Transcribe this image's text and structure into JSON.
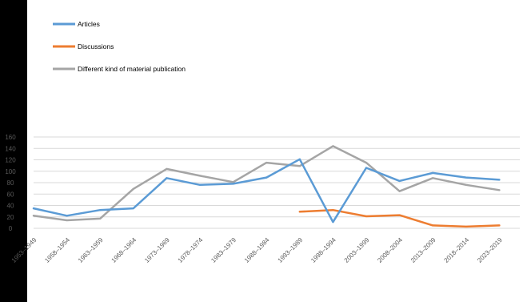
{
  "chart_data": {
    "type": "line",
    "categories": [
      "1953–1949",
      "1958–1954",
      "1963–1959",
      "1968–1964",
      "1973–1969",
      "1978–1974",
      "1983–1979",
      "1988–1984",
      "1993–1989",
      "1998–1994",
      "2003–1999",
      "2008–2004",
      "2013–2009",
      "2018–2014",
      "2023–2019"
    ],
    "series": [
      {
        "name": "Articles",
        "color": "#5b9bd5",
        "values": [
          35,
          22,
          32,
          35,
          88,
          76,
          78,
          89,
          121,
          11,
          106,
          83,
          97,
          89,
          85
        ]
      },
      {
        "name": "Discussions",
        "color": "#ed7d31",
        "values": [
          null,
          null,
          null,
          null,
          null,
          null,
          null,
          null,
          29,
          32,
          21,
          23,
          5,
          3,
          5
        ]
      },
      {
        "name": "Different kind of material publication",
        "color": "#a5a5a5",
        "values": [
          22,
          14,
          17,
          69,
          104,
          92,
          81,
          115,
          109,
          144,
          115,
          65,
          88,
          76,
          67
        ]
      }
    ],
    "ylim": [
      0,
      160
    ],
    "yticks": [
      0,
      20,
      40,
      60,
      80,
      100,
      120,
      140,
      160
    ],
    "grid": true,
    "legend_position": "top-left"
  }
}
